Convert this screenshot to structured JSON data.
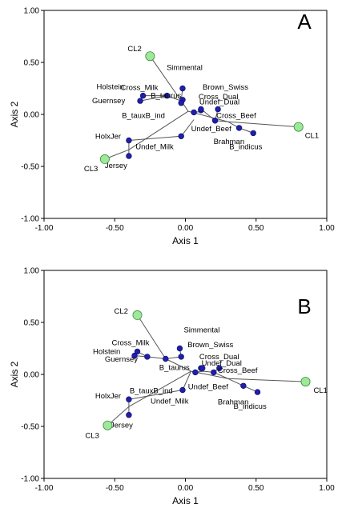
{
  "chart_data": [
    {
      "type": "scatter",
      "panel_label": "A",
      "xlabel": "Axis 1",
      "ylabel": "Axis 2",
      "xlim": [
        -1.0,
        1.0
      ],
      "ylim": [
        -1.0,
        1.0
      ],
      "xticks": [
        "-1.00",
        "-0.50",
        "0.00",
        "0.50",
        "1.00"
      ],
      "yticks": [
        "1.00",
        "0.50",
        "0.00",
        "-0.50",
        "-1.00"
      ],
      "grid": false,
      "clusters": [
        {
          "label": "CL1",
          "x": 0.8,
          "y": -0.12
        },
        {
          "label": "CL2",
          "x": -0.25,
          "y": 0.56
        },
        {
          "label": "CL3",
          "x": -0.57,
          "y": -0.43
        }
      ],
      "points": [
        {
          "label": "Simmental",
          "x": -0.02,
          "y": 0.25
        },
        {
          "label": "Brown_Swiss",
          "x": -0.02,
          "y": 0.14
        },
        {
          "label": "Cross_Milk",
          "x": -0.13,
          "y": 0.18
        },
        {
          "label": "Holstein",
          "x": -0.3,
          "y": 0.18
        },
        {
          "label": "Guernsey",
          "x": -0.32,
          "y": 0.13
        },
        {
          "label": "B_taurus",
          "x": -0.03,
          "y": 0.11
        },
        {
          "label": "B_tauxB_ind",
          "x": 0.06,
          "y": 0.02
        },
        {
          "label": "Cross_Dual",
          "x": 0.11,
          "y": 0.04
        },
        {
          "label": "Undef_Dual",
          "x": 0.11,
          "y": 0.05
        },
        {
          "label": "Cross_Beef",
          "x": 0.23,
          "y": 0.05
        },
        {
          "label": "Undef_Beef",
          "x": 0.21,
          "y": -0.06
        },
        {
          "label": "Brahman",
          "x": 0.38,
          "y": -0.13
        },
        {
          "label": "B_indicus",
          "x": 0.48,
          "y": -0.18
        },
        {
          "label": "Undef_Milk",
          "x": -0.03,
          "y": -0.21
        },
        {
          "label": "HolxJer",
          "x": -0.4,
          "y": -0.25
        },
        {
          "label": "Jersey",
          "x": -0.4,
          "y": -0.4
        }
      ],
      "branches": [
        {
          "from": "CL1",
          "x0": 0.8,
          "y0": -0.12,
          "x1": 0.3,
          "y1": -0.07
        },
        {
          "from": "CL2",
          "x0": -0.25,
          "y0": 0.56,
          "x1": -0.03,
          "y1": 0.13
        },
        {
          "from": "CL3",
          "x0": -0.57,
          "y0": -0.43,
          "x1": -0.4,
          "y1": -0.34
        }
      ],
      "tree": [
        [
          0.02,
          0.03,
          0.3,
          -0.07
        ],
        [
          0.02,
          0.03,
          -0.03,
          0.13
        ],
        [
          0.02,
          0.03,
          -0.4,
          -0.34
        ],
        [
          0.3,
          -0.07,
          0.38,
          -0.13
        ],
        [
          0.38,
          -0.13,
          0.48,
          -0.18
        ],
        [
          0.3,
          -0.07,
          0.21,
          -0.06
        ],
        [
          0.21,
          -0.06,
          0.23,
          0.05
        ],
        [
          0.11,
          0.04,
          0.13,
          0.03
        ],
        [
          0.06,
          0.02,
          0.13,
          0.03
        ],
        [
          0.13,
          0.03,
          0.21,
          -0.06
        ],
        [
          0.11,
          0.04,
          0.11,
          0.05
        ],
        [
          -0.03,
          0.13,
          -0.02,
          0.25
        ],
        [
          -0.03,
          0.13,
          -0.02,
          0.14
        ],
        [
          -0.03,
          0.13,
          -0.13,
          0.18
        ],
        [
          -0.13,
          0.18,
          -0.3,
          0.18
        ],
        [
          -0.13,
          0.18,
          -0.32,
          0.13
        ],
        [
          -0.03,
          0.13,
          -0.03,
          0.11
        ],
        [
          -0.4,
          -0.34,
          -0.4,
          -0.25
        ],
        [
          -0.4,
          -0.34,
          -0.4,
          -0.4
        ],
        [
          -0.4,
          -0.25,
          -0.03,
          -0.21
        ],
        [
          -0.03,
          -0.21,
          0.06,
          -0.05
        ]
      ]
    },
    {
      "type": "scatter",
      "panel_label": "B",
      "xlabel": "Axis 1",
      "ylabel": "Axis 2",
      "xlim": [
        -1.0,
        1.0
      ],
      "ylim": [
        -1.0,
        1.0
      ],
      "xticks": [
        "-1.00",
        "-0.50",
        "0.00",
        "0.50",
        "1.00"
      ],
      "yticks": [
        "1.00",
        "0.50",
        "0.00",
        "-0.50",
        "-1.00"
      ],
      "grid": false,
      "clusters": [
        {
          "label": "CL1",
          "x": 0.85,
          "y": -0.07
        },
        {
          "label": "CL2",
          "x": -0.34,
          "y": 0.57
        },
        {
          "label": "CL3",
          "x": -0.55,
          "y": -0.49
        }
      ],
      "points": [
        {
          "label": "Simmental",
          "x": -0.04,
          "y": 0.25
        },
        {
          "label": "Brown_Swiss",
          "x": -0.03,
          "y": 0.17
        },
        {
          "label": "Cross_Milk",
          "x": -0.34,
          "y": 0.22
        },
        {
          "label": "Holstein",
          "x": -0.36,
          "y": 0.18
        },
        {
          "label": "Guernsey",
          "x": -0.27,
          "y": 0.17
        },
        {
          "label": "B_taurus",
          "x": -0.14,
          "y": 0.15
        },
        {
          "label": "B_tauxB_ind",
          "x": 0.07,
          "y": 0.02
        },
        {
          "label": "Cross_Dual",
          "x": 0.11,
          "y": 0.06
        },
        {
          "label": "Undef_Dual",
          "x": 0.12,
          "y": 0.06
        },
        {
          "label": "Cross_Beef",
          "x": 0.24,
          "y": 0.06
        },
        {
          "label": "Undef_Beef",
          "x": 0.2,
          "y": 0.02
        },
        {
          "label": "Brahman",
          "x": 0.41,
          "y": -0.11
        },
        {
          "label": "B_indicus",
          "x": 0.51,
          "y": -0.17
        },
        {
          "label": "Undef_Milk",
          "x": -0.02,
          "y": -0.15
        },
        {
          "label": "HolxJer",
          "x": -0.4,
          "y": -0.24
        },
        {
          "label": "Jersey",
          "x": -0.4,
          "y": -0.39
        }
      ],
      "branches": [
        {
          "from": "CL1",
          "x0": 0.85,
          "y0": -0.07,
          "x1": 0.3,
          "y1": -0.04
        },
        {
          "from": "CL2",
          "x0": -0.34,
          "y0": 0.57,
          "x1": -0.14,
          "y1": 0.15
        },
        {
          "from": "CL3",
          "x0": -0.55,
          "y0": -0.49,
          "x1": -0.4,
          "y1": -0.31
        }
      ],
      "tree": [
        [
          0.04,
          0.03,
          0.3,
          -0.04
        ],
        [
          0.04,
          0.03,
          -0.14,
          0.15
        ],
        [
          0.04,
          0.03,
          -0.4,
          -0.31
        ],
        [
          0.3,
          -0.04,
          0.41,
          -0.11
        ],
        [
          0.41,
          -0.11,
          0.51,
          -0.17
        ],
        [
          0.3,
          -0.04,
          0.2,
          0.02
        ],
        [
          0.2,
          0.02,
          0.24,
          0.06
        ],
        [
          0.11,
          0.06,
          0.13,
          0.03
        ],
        [
          0.07,
          0.02,
          0.13,
          0.03
        ],
        [
          0.13,
          0.03,
          0.2,
          0.02
        ],
        [
          0.11,
          0.06,
          0.12,
          0.06
        ],
        [
          -0.14,
          0.15,
          -0.03,
          0.17
        ],
        [
          -0.03,
          0.17,
          -0.04,
          0.25
        ],
        [
          -0.14,
          0.15,
          -0.27,
          0.17
        ],
        [
          -0.27,
          0.17,
          -0.34,
          0.22
        ],
        [
          -0.27,
          0.17,
          -0.36,
          0.18
        ],
        [
          -0.4,
          -0.31,
          -0.4,
          -0.24
        ],
        [
          -0.4,
          -0.31,
          -0.4,
          -0.39
        ],
        [
          -0.4,
          -0.24,
          -0.02,
          -0.15
        ],
        [
          -0.02,
          -0.15,
          0.04,
          0.03
        ]
      ]
    }
  ]
}
